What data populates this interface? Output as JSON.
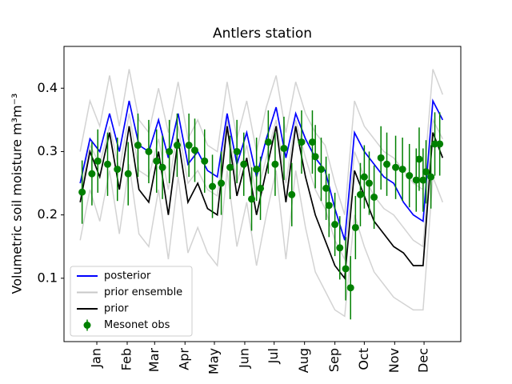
{
  "chart_data": {
    "type": "line",
    "title": "Antlers station",
    "ylabel": "Volumetric soil moisture m³m⁻³",
    "x": [
      -16,
      -6,
      4,
      14,
      24,
      34,
      44,
      54,
      64,
      74,
      84,
      94,
      104,
      114,
      124,
      134,
      144,
      154,
      164,
      174,
      184,
      194,
      204,
      214,
      224,
      234,
      244,
      254,
      264,
      274,
      284,
      294,
      304,
      314,
      324,
      334,
      344,
      354
    ],
    "series": [
      {
        "name": "posterior",
        "color": "#0000ff",
        "values": [
          0.25,
          0.32,
          0.3,
          0.36,
          0.3,
          0.38,
          0.31,
          0.3,
          0.35,
          0.29,
          0.36,
          0.28,
          0.3,
          0.27,
          0.26,
          0.36,
          0.28,
          0.33,
          0.26,
          0.32,
          0.37,
          0.29,
          0.36,
          0.32,
          0.29,
          0.27,
          0.21,
          0.16,
          0.33,
          0.3,
          0.28,
          0.26,
          0.25,
          0.22,
          0.2,
          0.19,
          0.38,
          0.35
        ]
      },
      {
        "name": "prior ensemble",
        "color": "#c8c8c8",
        "members": [
          [
            0.3,
            0.38,
            0.34,
            0.42,
            0.34,
            0.43,
            0.35,
            0.33,
            0.4,
            0.33,
            0.41,
            0.32,
            0.35,
            0.31,
            0.3,
            0.41,
            0.32,
            0.38,
            0.3,
            0.37,
            0.42,
            0.33,
            0.41,
            0.36,
            0.33,
            0.31,
            0.25,
            0.2,
            0.38,
            0.34,
            0.32,
            0.3,
            0.29,
            0.27,
            0.25,
            0.24,
            0.43,
            0.39
          ],
          [
            0.23,
            0.31,
            0.28,
            0.34,
            0.27,
            0.36,
            0.27,
            0.26,
            0.32,
            0.24,
            0.34,
            0.25,
            0.27,
            0.24,
            0.23,
            0.35,
            0.25,
            0.31,
            0.23,
            0.29,
            0.35,
            0.25,
            0.35,
            0.29,
            0.24,
            0.21,
            0.16,
            0.13,
            0.3,
            0.26,
            0.23,
            0.21,
            0.2,
            0.18,
            0.16,
            0.15,
            0.35,
            0.32
          ],
          [
            0.16,
            0.24,
            0.19,
            0.27,
            0.17,
            0.28,
            0.17,
            0.15,
            0.24,
            0.13,
            0.26,
            0.14,
            0.18,
            0.14,
            0.12,
            0.27,
            0.15,
            0.22,
            0.12,
            0.2,
            0.27,
            0.13,
            0.27,
            0.18,
            0.11,
            0.08,
            0.05,
            0.04,
            0.2,
            0.15,
            0.11,
            0.09,
            0.07,
            0.06,
            0.05,
            0.05,
            0.26,
            0.22
          ]
        ]
      },
      {
        "name": "prior",
        "color": "#000000",
        "values": [
          0.22,
          0.3,
          0.26,
          0.33,
          0.24,
          0.34,
          0.24,
          0.22,
          0.3,
          0.2,
          0.32,
          0.22,
          0.25,
          0.21,
          0.2,
          0.34,
          0.23,
          0.29,
          0.2,
          0.27,
          0.34,
          0.22,
          0.34,
          0.26,
          0.2,
          0.16,
          0.12,
          0.1,
          0.27,
          0.23,
          0.19,
          0.17,
          0.15,
          0.14,
          0.12,
          0.12,
          0.33,
          0.29
        ]
      }
    ],
    "obs": {
      "name": "Mesonet obs",
      "color": "#008000",
      "x": [
        -14,
        -4,
        2,
        12,
        22,
        33,
        43,
        54,
        62,
        68,
        75,
        83,
        95,
        101,
        111,
        119,
        128,
        137,
        144,
        151,
        159,
        164,
        168,
        176,
        183,
        192,
        200,
        210,
        221,
        224,
        230,
        235,
        238,
        244,
        249,
        255,
        260,
        265,
        270,
        274,
        279,
        284,
        291,
        297,
        306,
        313,
        320,
        327,
        330,
        334,
        337,
        342,
        346,
        351
      ],
      "values": [
        0.236,
        0.265,
        0.285,
        0.28,
        0.272,
        0.265,
        0.31,
        0.3,
        0.285,
        0.275,
        0.3,
        0.31,
        0.31,
        0.302,
        0.285,
        0.245,
        0.25,
        0.275,
        0.3,
        0.28,
        0.225,
        0.272,
        0.242,
        0.315,
        0.28,
        0.305,
        0.232,
        0.315,
        0.315,
        0.292,
        0.272,
        0.242,
        0.215,
        0.185,
        0.148,
        0.115,
        0.085,
        0.18,
        0.232,
        0.26,
        0.25,
        0.228,
        0.29,
        0.28,
        0.275,
        0.272,
        0.262,
        0.255,
        0.288,
        0.255,
        0.268,
        0.26,
        0.312,
        0.312
      ],
      "errors": [
        0.05,
        0.05,
        0.05,
        0.05,
        0.05,
        0.05,
        0.05,
        0.05,
        0.05,
        0.05,
        0.05,
        0.05,
        0.05,
        0.05,
        0.05,
        0.05,
        0.05,
        0.05,
        0.05,
        0.05,
        0.05,
        0.05,
        0.05,
        0.05,
        0.05,
        0.05,
        0.05,
        0.05,
        0.05,
        0.05,
        0.05,
        0.05,
        0.05,
        0.05,
        0.05,
        0.05,
        0.05,
        0.05,
        0.05,
        0.05,
        0.05,
        0.05,
        0.05,
        0.05,
        0.05,
        0.05,
        0.05,
        0.05,
        0.05,
        0.05,
        0.05,
        0.05,
        0.05,
        0.05
      ]
    },
    "xlim": [
      -32.5,
      372.5
    ],
    "ylim": [
      0,
      0.466
    ],
    "xticks": [
      {
        "value": 1,
        "label": "Jan"
      },
      {
        "value": 32,
        "label": "Feb"
      },
      {
        "value": 60,
        "label": "Mar"
      },
      {
        "value": 91,
        "label": "Apr"
      },
      {
        "value": 121,
        "label": "May"
      },
      {
        "value": 152,
        "label": "Jun"
      },
      {
        "value": 182,
        "label": "Jul"
      },
      {
        "value": 213,
        "label": "Aug"
      },
      {
        "value": 244,
        "label": "Sep"
      },
      {
        "value": 274,
        "label": "Oct"
      },
      {
        "value": 305,
        "label": "Nov"
      },
      {
        "value": 335,
        "label": "Dec"
      }
    ],
    "yticks": [
      0.1,
      0.2,
      0.3,
      0.4
    ],
    "legend": "lower left"
  }
}
